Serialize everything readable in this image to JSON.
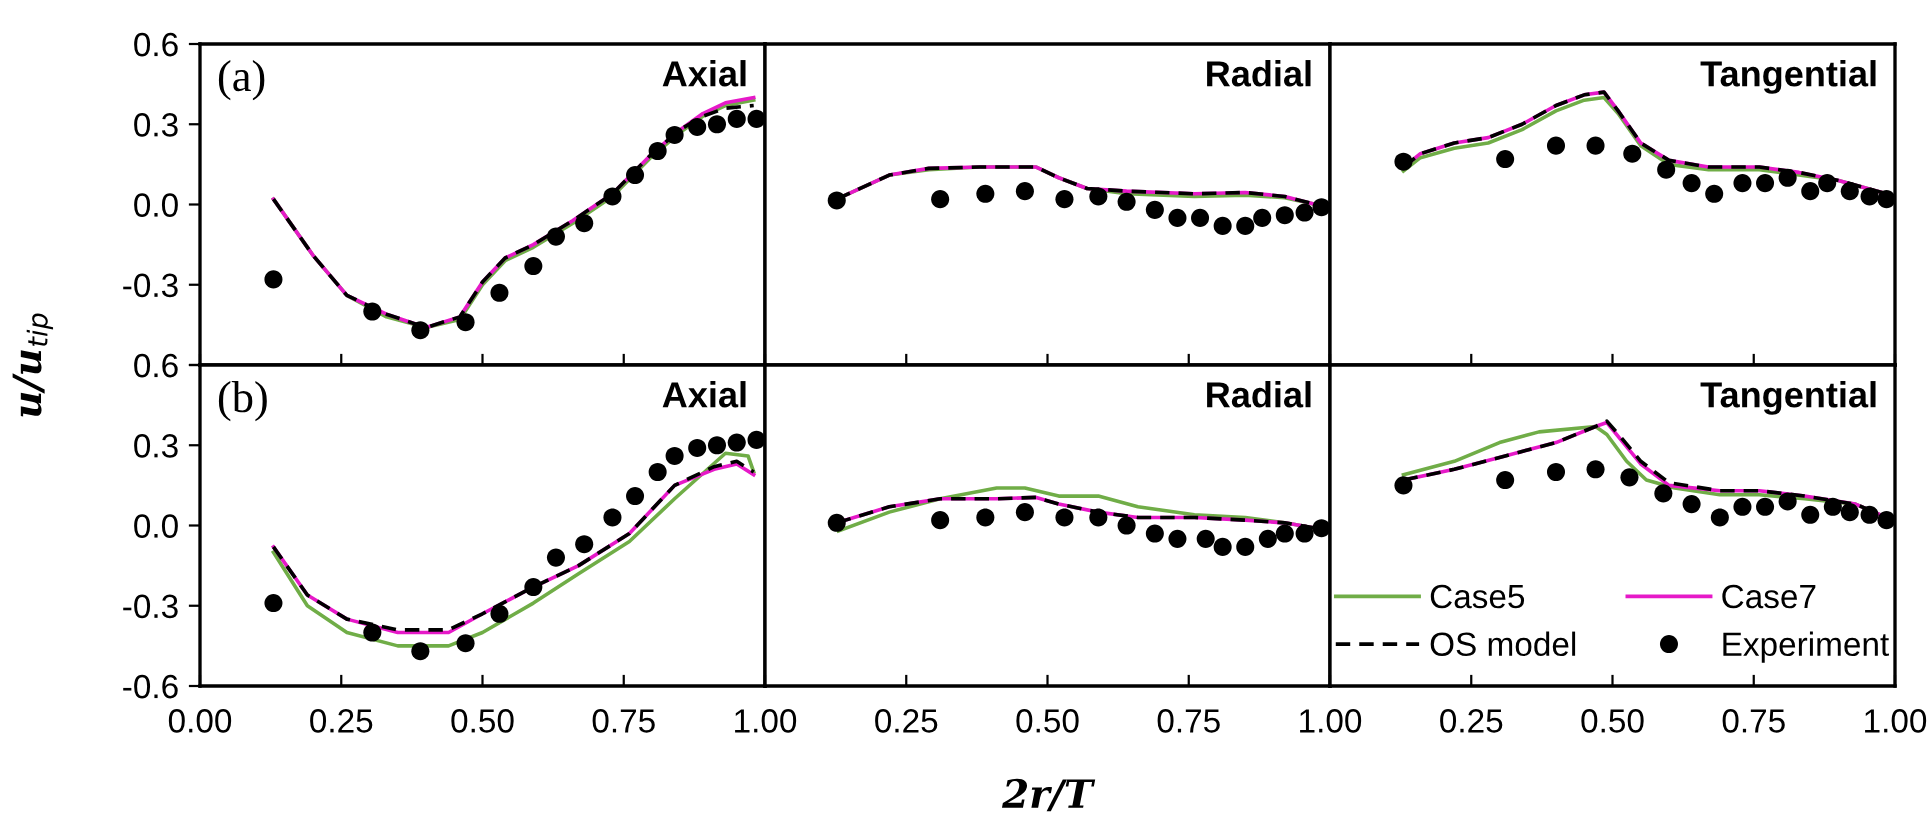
{
  "chart_data": [
    {
      "type": "line",
      "annotations": [
        "(a)",
        "Axial"
      ],
      "tick_labels": "y",
      "xlim": [
        0,
        1
      ],
      "ylim": [
        -0.6,
        0.6
      ],
      "xticks": [
        {
          "value": 0,
          "label": null
        },
        {
          "value": 0.25,
          "label": null
        },
        {
          "value": 0.5,
          "label": null
        },
        {
          "value": 0.75,
          "label": null
        },
        {
          "value": 1,
          "label": null
        }
      ],
      "yticks": [
        {
          "value": -0.6,
          "label": null
        },
        {
          "value": -0.3,
          "label": "-0.3"
        },
        {
          "value": 0,
          "label": "0.0"
        },
        {
          "value": 0.3,
          "label": "0.3"
        },
        {
          "value": 0.6,
          "label": "0.6"
        }
      ],
      "grid": false,
      "legend": false,
      "series": [
        {
          "color": "#70ad47",
          "x": [
            0.13,
            0.2,
            0.26,
            0.33,
            0.4,
            0.46,
            0.5,
            0.54,
            0.59,
            0.66,
            0.73,
            0.8,
            0.85,
            0.89,
            0.93,
            0.98
          ],
          "values": [
            0.02,
            -0.19,
            -0.34,
            -0.42,
            -0.46,
            -0.43,
            -0.3,
            -0.21,
            -0.16,
            -0.07,
            0.03,
            0.18,
            0.27,
            0.33,
            0.37,
            0.39
          ]
        },
        {
          "color": "#e619c8",
          "x": [
            0.13,
            0.2,
            0.26,
            0.33,
            0.4,
            0.46,
            0.5,
            0.54,
            0.59,
            0.66,
            0.73,
            0.8,
            0.85,
            0.89,
            0.93,
            0.98
          ],
          "values": [
            0.02,
            -0.19,
            -0.34,
            -0.41,
            -0.46,
            -0.42,
            -0.29,
            -0.2,
            -0.15,
            -0.06,
            0.04,
            0.19,
            0.28,
            0.34,
            0.38,
            0.4
          ]
        },
        {
          "color": "#000000",
          "line_style": "dashed",
          "x": [
            0.13,
            0.2,
            0.26,
            0.33,
            0.4,
            0.46,
            0.5,
            0.54,
            0.59,
            0.66,
            0.73,
            0.8,
            0.85,
            0.89,
            0.93,
            0.98
          ],
          "values": [
            0.02,
            -0.19,
            -0.34,
            -0.41,
            -0.46,
            -0.42,
            -0.29,
            -0.2,
            -0.15,
            -0.06,
            0.04,
            0.19,
            0.28,
            0.33,
            0.36,
            0.37
          ]
        },
        {
          "type": "scatter",
          "marker": "circle",
          "color": "#000000",
          "x": [
            0.13,
            0.305,
            0.39,
            0.47,
            0.53,
            0.59,
            0.63,
            0.68,
            0.73,
            0.77,
            0.81,
            0.84,
            0.88,
            0.915,
            0.95,
            0.985
          ],
          "values": [
            -0.28,
            -0.4,
            -0.47,
            -0.44,
            -0.33,
            -0.23,
            -0.12,
            -0.07,
            0.03,
            0.11,
            0.2,
            0.26,
            0.29,
            0.3,
            0.32,
            0.32
          ]
        }
      ]
    },
    {
      "type": "line",
      "annotations": [
        "Radial"
      ],
      "tick_labels": false,
      "xlim": [
        0,
        1
      ],
      "ylim": [
        -0.6,
        0.6
      ],
      "xticks": [
        {
          "value": 0,
          "label": null
        },
        {
          "value": 0.25,
          "label": null
        },
        {
          "value": 0.5,
          "label": null
        },
        {
          "value": 0.75,
          "label": null
        },
        {
          "value": 1,
          "label": null
        }
      ],
      "yticks": [
        {
          "value": -0.6,
          "label": null
        },
        {
          "value": -0.3,
          "label": null
        },
        {
          "value": 0,
          "label": null
        },
        {
          "value": 0.3,
          "label": null
        },
        {
          "value": 0.6,
          "label": null
        }
      ],
      "grid": false,
      "legend": false,
      "series": [
        {
          "color": "#70ad47",
          "x": [
            0.127,
            0.22,
            0.29,
            0.38,
            0.48,
            0.52,
            0.57,
            0.64,
            0.76,
            0.85,
            0.92,
            0.975
          ],
          "values": [
            0.02,
            0.11,
            0.13,
            0.14,
            0.14,
            0.1,
            0.06,
            0.04,
            0.03,
            0.035,
            0.025,
            0.0
          ]
        },
        {
          "color": "#e619c8",
          "x": [
            0.127,
            0.22,
            0.29,
            0.38,
            0.48,
            0.52,
            0.57,
            0.64,
            0.76,
            0.85,
            0.92,
            0.975
          ],
          "values": [
            0.02,
            0.11,
            0.135,
            0.14,
            0.14,
            0.1,
            0.06,
            0.05,
            0.04,
            0.045,
            0.03,
            0.0
          ]
        },
        {
          "color": "#000000",
          "line_style": "dashed",
          "x": [
            0.127,
            0.22,
            0.29,
            0.38,
            0.48,
            0.52,
            0.57,
            0.64,
            0.76,
            0.85,
            0.92,
            0.975
          ],
          "values": [
            0.02,
            0.11,
            0.135,
            0.14,
            0.14,
            0.1,
            0.06,
            0.05,
            0.04,
            0.045,
            0.03,
            0.0
          ]
        },
        {
          "type": "scatter",
          "marker": "circle",
          "color": "#000000",
          "x": [
            0.127,
            0.31,
            0.39,
            0.46,
            0.53,
            0.59,
            0.64,
            0.69,
            0.73,
            0.77,
            0.81,
            0.85,
            0.88,
            0.92,
            0.955,
            0.985
          ],
          "values": [
            0.015,
            0.02,
            0.04,
            0.05,
            0.02,
            0.03,
            0.01,
            -0.02,
            -0.05,
            -0.05,
            -0.08,
            -0.08,
            -0.05,
            -0.04,
            -0.03,
            -0.01
          ]
        }
      ]
    },
    {
      "type": "line",
      "annotations": [
        "Tangential"
      ],
      "tick_labels": false,
      "xlim": [
        0,
        1
      ],
      "ylim": [
        -0.6,
        0.6
      ],
      "xticks": [
        {
          "value": 0,
          "label": null
        },
        {
          "value": 0.25,
          "label": null
        },
        {
          "value": 0.5,
          "label": null
        },
        {
          "value": 0.75,
          "label": null
        },
        {
          "value": 1,
          "label": null
        }
      ],
      "yticks": [
        {
          "value": -0.6,
          "label": null
        },
        {
          "value": -0.3,
          "label": null
        },
        {
          "value": 0,
          "label": null
        },
        {
          "value": 0.3,
          "label": null
        },
        {
          "value": 0.6,
          "label": null
        }
      ],
      "grid": false,
      "legend": false,
      "series": [
        {
          "color": "#70ad47",
          "x": [
            0.13,
            0.16,
            0.22,
            0.28,
            0.34,
            0.4,
            0.45,
            0.485,
            0.51,
            0.55,
            0.6,
            0.67,
            0.76,
            0.83,
            0.9,
            0.985
          ],
          "values": [
            0.125,
            0.175,
            0.21,
            0.23,
            0.28,
            0.35,
            0.39,
            0.4,
            0.34,
            0.22,
            0.15,
            0.13,
            0.13,
            0.11,
            0.09,
            0.04
          ]
        },
        {
          "color": "#e619c8",
          "x": [
            0.13,
            0.16,
            0.22,
            0.28,
            0.34,
            0.4,
            0.45,
            0.485,
            0.51,
            0.55,
            0.6,
            0.67,
            0.76,
            0.83,
            0.9,
            0.985
          ],
          "values": [
            0.14,
            0.19,
            0.23,
            0.25,
            0.3,
            0.37,
            0.41,
            0.42,
            0.35,
            0.23,
            0.165,
            0.14,
            0.14,
            0.12,
            0.09,
            0.04
          ]
        },
        {
          "color": "#000000",
          "line_style": "dashed",
          "x": [
            0.13,
            0.16,
            0.22,
            0.28,
            0.34,
            0.4,
            0.45,
            0.485,
            0.51,
            0.55,
            0.6,
            0.67,
            0.76,
            0.83,
            0.9,
            0.985
          ],
          "values": [
            0.14,
            0.19,
            0.23,
            0.25,
            0.3,
            0.37,
            0.41,
            0.42,
            0.35,
            0.23,
            0.165,
            0.14,
            0.14,
            0.12,
            0.09,
            0.04
          ]
        },
        {
          "type": "scatter",
          "marker": "circle",
          "color": "#000000",
          "x": [
            0.13,
            0.31,
            0.4,
            0.47,
            0.535,
            0.595,
            0.64,
            0.68,
            0.73,
            0.77,
            0.81,
            0.85,
            0.88,
            0.92,
            0.955,
            0.985
          ],
          "values": [
            0.16,
            0.17,
            0.22,
            0.22,
            0.19,
            0.13,
            0.08,
            0.04,
            0.08,
            0.08,
            0.1,
            0.05,
            0.08,
            0.05,
            0.03,
            0.02
          ]
        }
      ]
    },
    {
      "type": "line",
      "annotations": [
        "(b)",
        "Axial"
      ],
      "ylabel": "u/u$_{tip}$",
      "xlim": [
        0,
        1
      ],
      "ylim": [
        -0.6,
        0.6
      ],
      "xticks": [
        {
          "value": 0,
          "label": "0.00"
        },
        {
          "value": 0.25,
          "label": "0.25"
        },
        {
          "value": 0.5,
          "label": "0.50"
        },
        {
          "value": 0.75,
          "label": "0.75"
        },
        {
          "value": 1,
          "label": "1.00"
        }
      ],
      "yticks": [
        {
          "value": -0.6,
          "label": "-0.6"
        },
        {
          "value": -0.3,
          "label": "-0.3"
        },
        {
          "value": 0,
          "label": "0.0"
        },
        {
          "value": 0.3,
          "label": "0.3"
        },
        {
          "value": 0.6,
          "label": "0.6"
        }
      ],
      "grid": false,
      "legend": false,
      "series": [
        {
          "color": "#70ad47",
          "x": [
            0.13,
            0.19,
            0.26,
            0.35,
            0.44,
            0.5,
            0.59,
            0.67,
            0.76,
            0.84,
            0.93,
            0.97,
            0.98
          ],
          "values": [
            -0.1,
            -0.3,
            -0.4,
            -0.45,
            -0.45,
            -0.4,
            -0.29,
            -0.18,
            -0.06,
            0.1,
            0.27,
            0.26,
            0.2
          ]
        },
        {
          "color": "#e619c8",
          "x": [
            0.13,
            0.19,
            0.26,
            0.35,
            0.44,
            0.5,
            0.59,
            0.67,
            0.76,
            0.84,
            0.91,
            0.95,
            0.98
          ],
          "values": [
            -0.08,
            -0.26,
            -0.35,
            -0.4,
            -0.4,
            -0.33,
            -0.23,
            -0.15,
            -0.03,
            0.15,
            0.21,
            0.23,
            0.19
          ]
        },
        {
          "color": "#000000",
          "line_style": "dashed",
          "x": [
            0.13,
            0.19,
            0.26,
            0.35,
            0.44,
            0.5,
            0.59,
            0.67,
            0.76,
            0.84,
            0.91,
            0.95,
            0.98
          ],
          "values": [
            -0.08,
            -0.26,
            -0.35,
            -0.39,
            -0.39,
            -0.33,
            -0.23,
            -0.15,
            -0.03,
            0.15,
            0.22,
            0.24,
            0.2
          ]
        },
        {
          "type": "scatter",
          "marker": "circle",
          "color": "#000000",
          "x": [
            0.13,
            0.305,
            0.39,
            0.47,
            0.53,
            0.59,
            0.63,
            0.68,
            0.73,
            0.77,
            0.81,
            0.84,
            0.88,
            0.915,
            0.95,
            0.985
          ],
          "values": [
            -0.29,
            -0.4,
            -0.47,
            -0.44,
            -0.33,
            -0.23,
            -0.12,
            -0.07,
            0.03,
            0.11,
            0.2,
            0.26,
            0.29,
            0.3,
            0.31,
            0.32
          ]
        }
      ]
    },
    {
      "type": "line",
      "annotations": [
        "Radial"
      ],
      "tick_labels": "x",
      "xlabel": "2r/T",
      "xlim": [
        0,
        1
      ],
      "ylim": [
        -0.6,
        0.6
      ],
      "xticks": [
        {
          "value": 0,
          "label": null
        },
        {
          "value": 0.25,
          "label": "0.25"
        },
        {
          "value": 0.5,
          "label": "0.50"
        },
        {
          "value": 0.75,
          "label": "0.75"
        },
        {
          "value": 1,
          "label": "1.00"
        }
      ],
      "yticks": [
        {
          "value": -0.6,
          "label": null
        },
        {
          "value": -0.3,
          "label": null
        },
        {
          "value": 0,
          "label": null
        },
        {
          "value": 0.3,
          "label": null
        },
        {
          "value": 0.6,
          "label": null
        }
      ],
      "grid": false,
      "legend": false,
      "series": [
        {
          "color": "#70ad47",
          "x": [
            0.13,
            0.22,
            0.31,
            0.41,
            0.46,
            0.52,
            0.59,
            0.66,
            0.76,
            0.85,
            0.92,
            0.975
          ],
          "values": [
            -0.02,
            0.05,
            0.1,
            0.14,
            0.14,
            0.11,
            0.11,
            0.07,
            0.04,
            0.03,
            0.01,
            -0.01
          ]
        },
        {
          "color": "#e619c8",
          "x": [
            0.127,
            0.22,
            0.31,
            0.41,
            0.48,
            0.52,
            0.59,
            0.66,
            0.76,
            0.85,
            0.92,
            0.975
          ],
          "values": [
            0.01,
            0.07,
            0.1,
            0.1,
            0.105,
            0.08,
            0.05,
            0.03,
            0.03,
            0.02,
            0.01,
            -0.01
          ]
        },
        {
          "color": "#000000",
          "line_style": "dashed",
          "x": [
            0.127,
            0.22,
            0.31,
            0.41,
            0.48,
            0.52,
            0.59,
            0.66,
            0.76,
            0.85,
            0.92,
            0.975
          ],
          "values": [
            0.01,
            0.07,
            0.1,
            0.1,
            0.105,
            0.08,
            0.05,
            0.03,
            0.03,
            0.02,
            0.01,
            -0.01
          ]
        },
        {
          "type": "scatter",
          "marker": "circle",
          "color": "#000000",
          "x": [
            0.127,
            0.31,
            0.39,
            0.46,
            0.53,
            0.59,
            0.64,
            0.69,
            0.73,
            0.78,
            0.81,
            0.85,
            0.89,
            0.92,
            0.955,
            0.985
          ],
          "values": [
            0.01,
            0.02,
            0.03,
            0.05,
            0.03,
            0.03,
            0.0,
            -0.03,
            -0.05,
            -0.05,
            -0.08,
            -0.08,
            -0.05,
            -0.03,
            -0.03,
            -0.01
          ]
        }
      ]
    },
    {
      "type": "line",
      "annotations": [
        "Tangential"
      ],
      "tick_labels": "x",
      "xlim": [
        0,
        1
      ],
      "ylim": [
        -0.6,
        0.6
      ],
      "xticks": [
        {
          "value": 0,
          "label": null
        },
        {
          "value": 0.25,
          "label": "0.25"
        },
        {
          "value": 0.5,
          "label": "0.50"
        },
        {
          "value": 0.75,
          "label": "0.75"
        },
        {
          "value": 1,
          "label": "1.00"
        }
      ],
      "yticks": [
        {
          "value": -0.6,
          "label": null
        },
        {
          "value": -0.3,
          "label": null
        },
        {
          "value": 0,
          "label": null
        },
        {
          "value": 0.3,
          "label": null
        },
        {
          "value": 0.6,
          "label": null
        }
      ],
      "grid": false,
      "legend": "bottom",
      "series": [
        {
          "name": "Case5",
          "color": "#70ad47",
          "x": [
            0.13,
            0.22,
            0.3,
            0.37,
            0.47,
            0.49,
            0.525,
            0.56,
            0.61,
            0.69,
            0.76,
            0.84,
            0.93,
            0.985
          ],
          "values": [
            0.19,
            0.24,
            0.31,
            0.35,
            0.37,
            0.34,
            0.24,
            0.17,
            0.14,
            0.115,
            0.115,
            0.1,
            0.08,
            0.03
          ]
        },
        {
          "name": "Case7",
          "color": "#e619c8",
          "x": [
            0.13,
            0.22,
            0.31,
            0.4,
            0.47,
            0.49,
            0.515,
            0.55,
            0.6,
            0.69,
            0.76,
            0.84,
            0.93,
            0.985
          ],
          "values": [
            0.17,
            0.21,
            0.26,
            0.31,
            0.37,
            0.385,
            0.32,
            0.23,
            0.15,
            0.13,
            0.13,
            0.11,
            0.08,
            0.03
          ]
        },
        {
          "name": "OS model",
          "color": "#000000",
          "line_style": "dashed",
          "x": [
            0.13,
            0.22,
            0.31,
            0.4,
            0.47,
            0.49,
            0.515,
            0.55,
            0.6,
            0.69,
            0.76,
            0.84,
            0.93,
            0.985
          ],
          "values": [
            0.17,
            0.21,
            0.26,
            0.31,
            0.37,
            0.39,
            0.33,
            0.24,
            0.16,
            0.13,
            0.13,
            0.11,
            0.08,
            0.03
          ]
        },
        {
          "name": "Experiment",
          "type": "scatter",
          "marker": "circle",
          "color": "#000000",
          "x": [
            0.13,
            0.31,
            0.4,
            0.47,
            0.53,
            0.59,
            0.64,
            0.69,
            0.73,
            0.77,
            0.81,
            0.85,
            0.89,
            0.92,
            0.955,
            0.985
          ],
          "values": [
            0.15,
            0.17,
            0.2,
            0.21,
            0.18,
            0.12,
            0.08,
            0.03,
            0.07,
            0.07,
            0.09,
            0.04,
            0.07,
            0.05,
            0.04,
            0.02
          ]
        }
      ]
    }
  ]
}
